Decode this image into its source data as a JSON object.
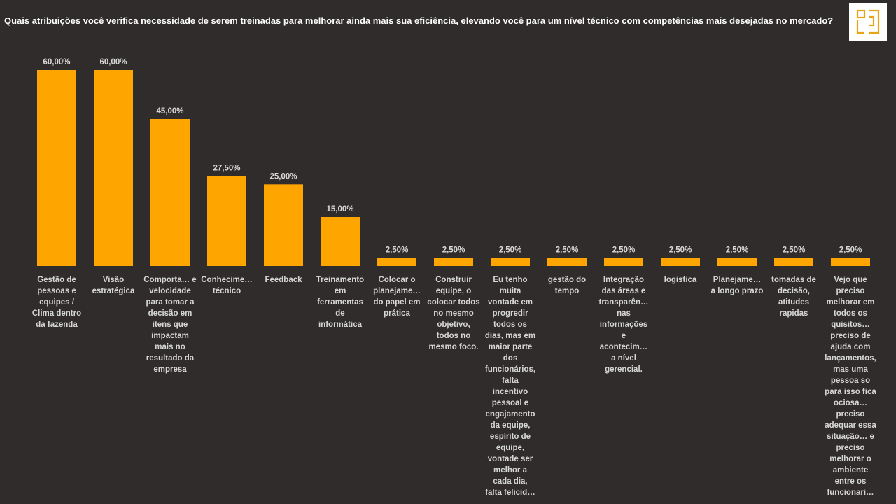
{
  "logo_icon": "brand-logo-icon",
  "chart_data": {
    "type": "bar",
    "title": "Quais atribuições você verifica necessidade de serem treinadas para melhorar ainda mais sua eficiência, elevando você para um nível técnico com competências mais desejadas no mercado?",
    "categories": [
      "Gestão de pessoas e equipes / Clima dentro da fazenda",
      "Visão estratégica",
      "Comporta… e velocidade para tomar a decisão em itens que impactam mais no resultado da empresa",
      "Conhecime… técnico",
      "Feedback",
      "Treinamento em ferramentas de informática",
      "Colocar o planejame… do papel em prática",
      "Construir equipe, o colocar todos no mesmo objetivo, todos no mesmo foco.",
      "Eu tenho muita vontade em progredir todos os dias, mas em maior parte dos funcionários, falta incentivo pessoal e engajamento da equipe, espírito de equipe, vontade ser melhor a cada dia, falta felicid…",
      "gestão do tempo",
      "Integração das áreas e transparên… nas informações e acontecim… a nível gerencial.",
      "logistica",
      "Planejame… a longo prazo",
      "tomadas de decisão, atitudes rapidas",
      "Vejo que preciso melhorar em todos os quisitos… preciso de ajuda com lançamentos, mas uma pessoa so para isso fica ociosa… preciso adequar essa situação… e preciso melhorar o ambiente entre os funcionari…"
    ],
    "values": [
      60,
      60,
      45,
      27.5,
      25,
      15,
      2.5,
      2.5,
      2.5,
      2.5,
      2.5,
      2.5,
      2.5,
      2.5,
      2.5
    ],
    "value_labels": [
      "60,00%",
      "60,00%",
      "45,00%",
      "27,50%",
      "25,00%",
      "15,00%",
      "2,50%",
      "2,50%",
      "2,50%",
      "2,50%",
      "2,50%",
      "2,50%",
      "2,50%",
      "2,50%",
      "2,50%"
    ],
    "ylim": [
      0,
      60
    ],
    "grid": false,
    "bar_color": "#ffa500",
    "background_color": "#2f2c2b",
    "logo_color": "#e8a317"
  }
}
